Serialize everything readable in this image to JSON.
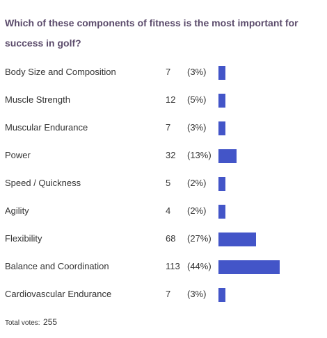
{
  "poll": {
    "question": "Which of these components of fitness is the most important for success in golf?",
    "total_label": "Total votes:",
    "total_value": "255"
  },
  "colors": {
    "bar": "#4355c8",
    "question_text": "#5b4b6b"
  },
  "chart_data": {
    "type": "bar",
    "orientation": "horizontal",
    "title": "Which of these components of fitness is the most important for success in golf?",
    "categories": [
      "Body Size and Composition",
      "Muscle Strength",
      "Muscular Endurance",
      "Power",
      "Speed / Quickness",
      "Agility",
      "Flexibility",
      "Balance and Coordination",
      "Cardiovascular Endurance"
    ],
    "values": [
      7,
      12,
      7,
      32,
      5,
      4,
      68,
      113,
      7
    ],
    "percent_labels": [
      "(3%)",
      "(5%)",
      "(3%)",
      "(13%)",
      "(2%)",
      "(2%)",
      "(27%)",
      "(44%)",
      "(3%)"
    ],
    "percents": [
      3,
      5,
      3,
      13,
      2,
      2,
      27,
      44,
      3
    ],
    "total": 255
  }
}
